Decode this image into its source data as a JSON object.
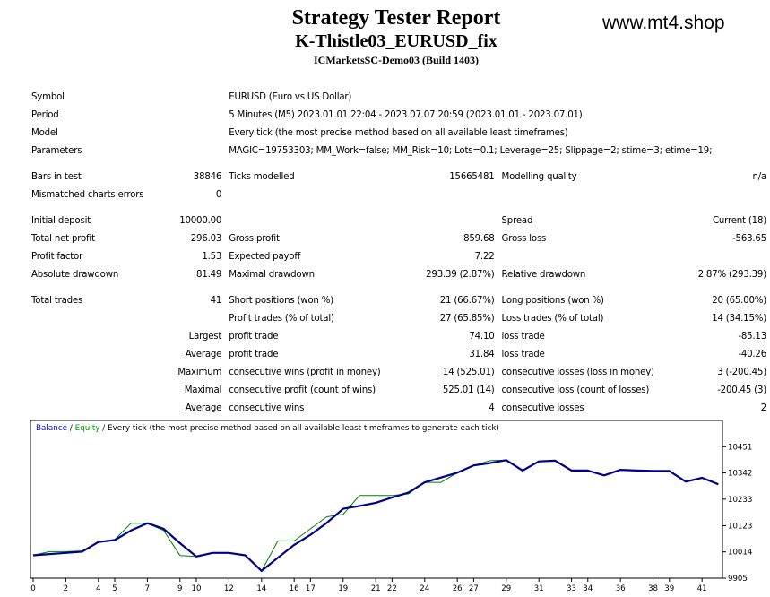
{
  "header": {
    "title": "Strategy Tester Report",
    "subtitle": "K-Thistle03_EURUSD_fix",
    "server": "ICMarketsSC-Demo03 (Build 1403)",
    "site": "www.mt4.shop"
  },
  "report": {
    "symbol": {
      "label": "Symbol",
      "value": "EURUSD (Euro vs US Dollar)"
    },
    "period": {
      "label": "Period",
      "value": "5 Minutes (M5) 2023.01.01 22:04 - 2023.07.07 20:59 (2023.01.01 - 2023.07.01)"
    },
    "model": {
      "label": "Model",
      "value": "Every tick (the most precise method based on all available least timeframes)"
    },
    "parameters": {
      "label": "Parameters",
      "value": "MAGIC=19753303; MM_Work=false; MM_Risk=10; Lots=0.1; Leverage=25; Slippage=2; stime=3; etime=19;"
    },
    "bars_in_test": {
      "label": "Bars in test",
      "value": "38846"
    },
    "ticks_modelled": {
      "label": "Ticks modelled",
      "value": "15665481"
    },
    "modelling_quality": {
      "label": "Modelling quality",
      "value": "n/a"
    },
    "mismatched": {
      "label": "Mismatched charts errors",
      "value": "0"
    },
    "initial_deposit": {
      "label": "Initial deposit",
      "value": "10000.00"
    },
    "spread": {
      "label": "Spread",
      "value": "Current (18)"
    },
    "total_net_profit": {
      "label": "Total net profit",
      "value": "296.03"
    },
    "gross_profit": {
      "label": "Gross profit",
      "value": "859.68"
    },
    "gross_loss": {
      "label": "Gross loss",
      "value": "-563.65"
    },
    "profit_factor": {
      "label": "Profit factor",
      "value": "1.53"
    },
    "expected_payoff": {
      "label": "Expected payoff",
      "value": "7.22"
    },
    "absolute_drawdown": {
      "label": "Absolute drawdown",
      "value": "81.49"
    },
    "maximal_drawdown": {
      "label": "Maximal drawdown",
      "value": "293.39 (2.87%)"
    },
    "relative_drawdown": {
      "label": "Relative drawdown",
      "value": "2.87% (293.39)"
    },
    "total_trades": {
      "label": "Total trades",
      "value": "41"
    },
    "short_positions": {
      "label": "Short positions (won %)",
      "value": "21 (66.67%)"
    },
    "long_positions": {
      "label": "Long positions (won %)",
      "value": "20 (65.00%)"
    },
    "profit_trades": {
      "label": "Profit trades (% of total)",
      "value": "27 (65.85%)"
    },
    "loss_trades": {
      "label": "Loss trades (% of total)",
      "value": "14 (34.15%)"
    },
    "largest": {
      "label": "Largest",
      "profit_label": "profit trade",
      "profit_value": "74.10",
      "loss_label": "loss trade",
      "loss_value": "-85.13"
    },
    "average": {
      "label": "Average",
      "profit_label": "profit trade",
      "profit_value": "31.84",
      "loss_label": "loss trade",
      "loss_value": "-40.26"
    },
    "maximum": {
      "label": "Maximum",
      "wins_label": "consecutive wins (profit in money)",
      "wins_value": "14 (525.01)",
      "losses_label": "consecutive losses (loss in money)",
      "losses_value": "3 (-200.45)"
    },
    "maximal": {
      "label": "Maximal",
      "wins_label": "consecutive profit (count of wins)",
      "wins_value": "525.01 (14)",
      "losses_label": "consecutive loss (count of losses)",
      "losses_value": "-200.45 (3)"
    },
    "average_consec": {
      "label": "Average",
      "wins_label": "consecutive wins",
      "wins_value": "4",
      "losses_label": "consecutive losses",
      "losses_value": "2"
    }
  },
  "chart_data": {
    "type": "line",
    "legend": {
      "balance": "Balance",
      "sep1": " / ",
      "equity": "Equity",
      "sep2": " / ",
      "note": "Every tick (the most precise method based on all available least timeframes to generate each tick)"
    },
    "colors": {
      "balance": "#00008b",
      "equity": "#008000",
      "legend_balance": "#0000ff",
      "legend_equity": "#00a000",
      "frame": "#000000"
    },
    "ylim": [
      9905,
      10560
    ],
    "xlim": [
      0,
      42.2
    ],
    "y_ticks": [
      9905,
      10014,
      10123,
      10233,
      10342,
      10451
    ],
    "x_ticks": [
      0,
      2,
      4,
      5,
      7,
      9,
      10,
      12,
      14,
      16,
      17,
      19,
      21,
      22,
      24,
      26,
      27,
      29,
      31,
      33,
      34,
      36,
      38,
      39,
      41
    ],
    "series": [
      {
        "name": "Balance",
        "x": [
          0,
          1,
          2,
          3,
          4,
          5,
          6,
          7,
          8,
          9,
          10,
          11,
          12,
          13,
          14,
          15,
          16,
          17,
          18,
          19,
          20,
          21,
          22,
          23,
          24,
          25,
          26,
          27,
          28,
          29,
          30,
          31,
          32,
          33,
          34,
          35,
          36,
          37,
          38,
          39,
          40,
          41,
          42
        ],
        "y": [
          10000,
          10005,
          10010,
          10015,
          10055,
          10063,
          10103,
          10133,
          10110,
          10050,
          9995,
          10010,
          10010,
          10000,
          9935,
          9990,
          10043,
          10085,
          10135,
          10193,
          10205,
          10218,
          10240,
          10260,
          10303,
          10323,
          10343,
          10373,
          10383,
          10395,
          10352,
          10390,
          10393,
          10352,
          10352,
          10332,
          10355,
          10352,
          10350,
          10350,
          10306,
          10322,
          10295
        ]
      },
      {
        "name": "Equity",
        "x": [
          0,
          1,
          2,
          3,
          4,
          5,
          6,
          7,
          8,
          9,
          10,
          11,
          12,
          13,
          14,
          15,
          16,
          17,
          18,
          19,
          20,
          21,
          22,
          23,
          24,
          25,
          26,
          27,
          28,
          29,
          30,
          31,
          32,
          33,
          34,
          35,
          36,
          37,
          38,
          39,
          40,
          41,
          42
        ],
        "y": [
          10000,
          10015,
          10015,
          10018,
          10055,
          10065,
          10133,
          10133,
          10103,
          9999,
          9995,
          10010,
          10010,
          10000,
          9935,
          10060,
          10060,
          10110,
          10160,
          10170,
          10248,
          10248,
          10248,
          10255,
          10303,
          10303,
          10343,
          10373,
          10393,
          10395,
          10352,
          10390,
          10393,
          10352,
          10352,
          10332,
          10355,
          10352,
          10350,
          10350,
          10306,
          10322,
          10295
        ]
      }
    ]
  }
}
